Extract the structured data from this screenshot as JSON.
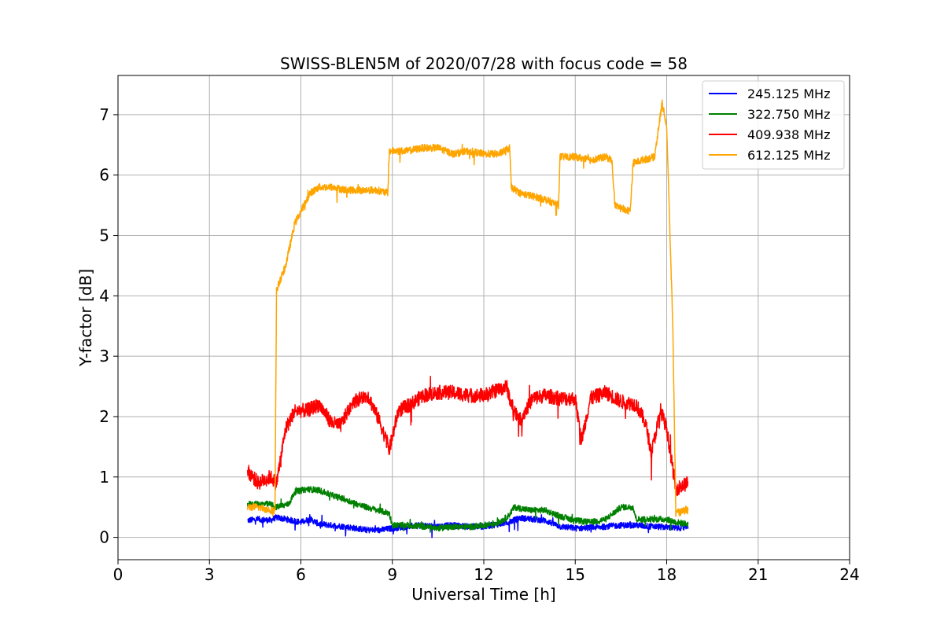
{
  "chart_data": {
    "type": "line",
    "title": "SWISS-BLEN5M of 2020/07/28 with focus code = 58",
    "xlabel": "Universal Time [h]",
    "ylabel": "Y-factor [dB]",
    "xlim": [
      0,
      24
    ],
    "ylim": [
      -0.37,
      7.65
    ],
    "x_ticks": [
      0,
      3,
      6,
      9,
      12,
      15,
      18,
      21,
      24
    ],
    "x_tick_labels": [
      "0",
      "3",
      "6",
      "9",
      "12",
      "15",
      "18",
      "21",
      "24"
    ],
    "y_ticks": [
      0,
      1,
      2,
      3,
      4,
      5,
      6,
      7
    ],
    "y_tick_labels": [
      "0",
      "1",
      "2",
      "3",
      "4",
      "5",
      "6",
      "7"
    ],
    "grid": true,
    "legend_position": "top-right",
    "series": [
      {
        "name": "245.125 MHz",
        "color": "#0000ff",
        "x": [
          4.25,
          4.6,
          5.0,
          5.2,
          5.5,
          6.0,
          6.3,
          6.6,
          7.0,
          7.4,
          7.8,
          8.2,
          8.6,
          9.0,
          9.5,
          10.0,
          10.5,
          11.0,
          11.5,
          12.0,
          12.5,
          12.8,
          13.2,
          13.6,
          14.0,
          14.5,
          15.0,
          15.5,
          16.0,
          16.5,
          17.0,
          17.5,
          18.0,
          18.3,
          18.7
        ],
        "y": [
          0.28,
          0.3,
          0.28,
          0.33,
          0.3,
          0.25,
          0.3,
          0.22,
          0.2,
          0.18,
          0.15,
          0.12,
          0.12,
          0.15,
          0.18,
          0.2,
          0.18,
          0.2,
          0.18,
          0.18,
          0.22,
          0.25,
          0.32,
          0.3,
          0.28,
          0.18,
          0.15,
          0.16,
          0.18,
          0.2,
          0.2,
          0.18,
          0.17,
          0.15,
          0.18
        ],
        "noise": 0.05
      },
      {
        "name": "322.750 MHz",
        "color": "#008000",
        "x": [
          4.25,
          4.6,
          5.0,
          5.2,
          5.6,
          5.8,
          6.2,
          6.6,
          7.0,
          7.5,
          8.0,
          8.5,
          8.9,
          9.0,
          9.5,
          10.0,
          10.5,
          11.0,
          11.5,
          12.0,
          12.5,
          12.8,
          13.0,
          13.5,
          14.0,
          14.5,
          15.0,
          15.5,
          16.0,
          16.5,
          16.9,
          17.0,
          17.5,
          18.0,
          18.3,
          18.7
        ],
        "y": [
          0.55,
          0.55,
          0.55,
          0.5,
          0.55,
          0.75,
          0.8,
          0.78,
          0.7,
          0.62,
          0.52,
          0.45,
          0.4,
          0.2,
          0.2,
          0.18,
          0.15,
          0.18,
          0.17,
          0.2,
          0.25,
          0.35,
          0.5,
          0.45,
          0.45,
          0.35,
          0.28,
          0.25,
          0.3,
          0.5,
          0.5,
          0.3,
          0.3,
          0.3,
          0.25,
          0.22
        ],
        "noise": 0.05
      },
      {
        "name": "409.938 MHz",
        "color": "#ff0000",
        "x": [
          4.25,
          4.6,
          5.0,
          5.2,
          5.5,
          5.8,
          6.2,
          6.6,
          7.0,
          7.3,
          7.7,
          8.2,
          8.6,
          8.9,
          9.2,
          9.6,
          10.0,
          10.5,
          11.0,
          11.5,
          12.0,
          12.5,
          12.75,
          12.9,
          13.2,
          13.6,
          14.0,
          14.5,
          15.0,
          15.2,
          15.5,
          16.0,
          16.5,
          17.0,
          17.3,
          17.5,
          17.8,
          18.0,
          18.3,
          18.7
        ],
        "y": [
          1.1,
          0.9,
          1.0,
          0.9,
          1.8,
          2.1,
          2.1,
          2.2,
          1.9,
          1.85,
          2.25,
          2.35,
          1.9,
          1.45,
          2.1,
          2.2,
          2.35,
          2.4,
          2.4,
          2.35,
          2.35,
          2.45,
          2.5,
          2.2,
          1.95,
          2.3,
          2.35,
          2.3,
          2.3,
          1.6,
          2.3,
          2.4,
          2.25,
          2.2,
          1.9,
          1.4,
          2.1,
          1.8,
          0.8,
          0.9
        ],
        "noise": 0.12
      },
      {
        "name": "612.125 MHz",
        "color": "#ffa500",
        "x": [
          4.25,
          4.6,
          5.0,
          5.15,
          5.2,
          5.5,
          5.8,
          6.0,
          6.3,
          6.6,
          7.0,
          7.5,
          8.0,
          8.5,
          8.85,
          8.9,
          9.5,
          10.0,
          10.5,
          11.0,
          11.5,
          12.0,
          12.5,
          12.85,
          12.9,
          13.2,
          13.6,
          14.0,
          14.45,
          14.5,
          15.0,
          15.5,
          16.0,
          16.2,
          16.3,
          16.8,
          16.9,
          17.2,
          17.6,
          17.85,
          18.0,
          18.2,
          18.3,
          18.7
        ],
        "y": [
          0.5,
          0.5,
          0.45,
          0.45,
          4.1,
          4.5,
          5.2,
          5.4,
          5.7,
          5.8,
          5.8,
          5.75,
          5.75,
          5.75,
          5.7,
          6.4,
          6.4,
          6.45,
          6.45,
          6.35,
          6.4,
          6.35,
          6.35,
          6.45,
          5.8,
          5.7,
          5.65,
          5.6,
          5.5,
          6.3,
          6.3,
          6.25,
          6.3,
          6.25,
          5.5,
          5.4,
          6.2,
          6.25,
          6.3,
          7.2,
          6.8,
          3.5,
          0.4,
          0.45
        ],
        "noise": 0.06
      }
    ]
  }
}
